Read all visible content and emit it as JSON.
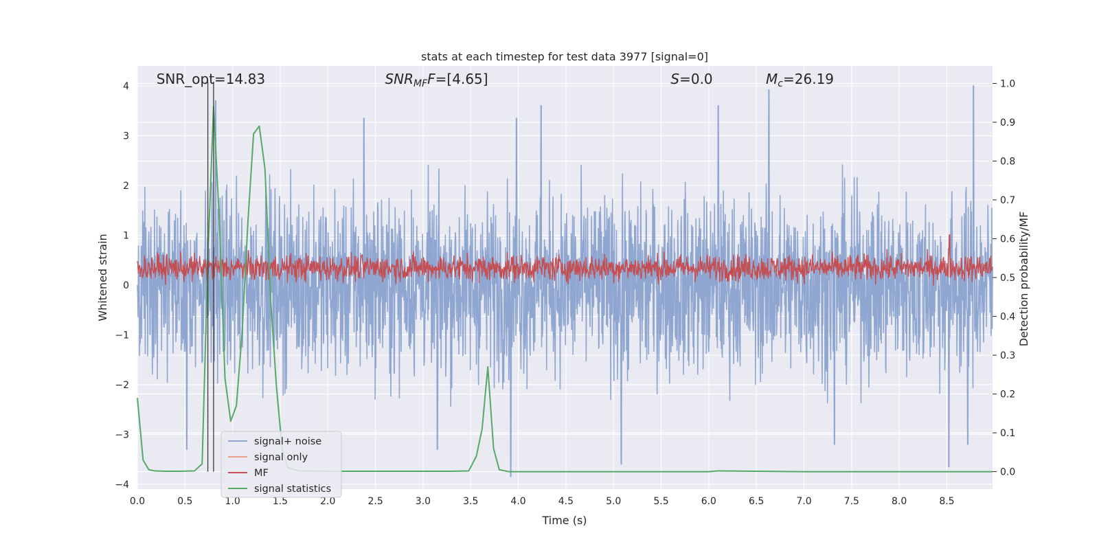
{
  "chart_data": {
    "type": "line",
    "title": "stats at each timestep for test data 3977 [signal=0]",
    "xlabel": "Time (s)",
    "ylabel": "Whitened strain",
    "ylabel_right": "Detection probability/MF",
    "xlim": [
      0.0,
      8.98
    ],
    "ylim": [
      -4.1,
      4.4
    ],
    "ylim_right": [
      -0.045,
      1.045
    ],
    "x_ticks": [
      "0.0",
      "0.5",
      "1.0",
      "1.5",
      "2.0",
      "2.5",
      "3.0",
      "3.5",
      "4.0",
      "4.5",
      "5.0",
      "5.5",
      "6.0",
      "6.5",
      "7.0",
      "7.5",
      "8.0",
      "8.5"
    ],
    "y_ticks": [
      "4",
      "3",
      "2",
      "1",
      "0",
      "−1",
      "−2",
      "−3",
      "−4"
    ],
    "y_ticks_right": [
      "1.0",
      "0.9",
      "0.8",
      "0.7",
      "0.6",
      "0.5",
      "0.4",
      "0.3",
      "0.2",
      "0.1",
      "0.0"
    ],
    "grid": true,
    "annotations": [
      {
        "id": "snr-opt",
        "text": "SNR_opt=14.83",
        "x": 0.2
      },
      {
        "id": "snr-mf",
        "text": "SNR",
        "sub": "MF",
        "suffix": "F=[4.65]",
        "x": 2.6
      },
      {
        "id": "s-stat",
        "text": "S",
        "suffix": "=0.0",
        "x": 5.6
      },
      {
        "id": "chirp-mass",
        "text": "M",
        "sub": "c",
        "suffix": "=26.19",
        "x": 6.6
      }
    ],
    "vertical_markers": [
      0.74,
      0.8
    ],
    "legend": {
      "placement": "lower-left",
      "entries": [
        {
          "label": "signal+ noise",
          "color": "#8fa6d1"
        },
        {
          "label": "signal only",
          "color": "#e8a08a"
        },
        {
          "label": "MF",
          "color": "#c44e52"
        },
        {
          "label": "signal statistics",
          "color": "#55a868"
        }
      ]
    },
    "series": [
      {
        "name": "signal+ noise",
        "axis": "left",
        "color": "#8fa6d1",
        "style": "dense-noise",
        "typical_range": [
          -1.6,
          1.6
        ],
        "x_range": [
          0.0,
          8.98
        ],
        "spikes": [
          {
            "x": 0.82,
            "y": 3.7
          },
          {
            "x": 2.38,
            "y": 3.35
          },
          {
            "x": 3.98,
            "y": 3.35
          },
          {
            "x": 4.24,
            "y": 3.6
          },
          {
            "x": 6.1,
            "y": 3.6
          },
          {
            "x": 6.63,
            "y": 3.92
          },
          {
            "x": 8.78,
            "y": 4.0
          },
          {
            "x": 0.52,
            "y": -3.3
          },
          {
            "x": 3.15,
            "y": -3.3
          },
          {
            "x": 5.08,
            "y": -3.6
          },
          {
            "x": 3.92,
            "y": -3.85
          },
          {
            "x": 8.52,
            "y": -3.65
          },
          {
            "x": 7.32,
            "y": -3.2
          },
          {
            "x": 8.72,
            "y": -3.2
          }
        ]
      },
      {
        "name": "MF",
        "axis": "right",
        "color": "#c44e52",
        "style": "dense-noise",
        "typical_range": [
          0.495,
          0.555
        ],
        "x_range": [
          0.0,
          8.98
        ],
        "spikes": [
          {
            "x": 8.53,
            "y": 0.61
          }
        ]
      },
      {
        "name": "signal statistics",
        "axis": "right",
        "color": "#55a868",
        "x": [
          0.0,
          0.06,
          0.12,
          0.18,
          0.3,
          0.45,
          0.6,
          0.68,
          0.74,
          0.8,
          0.86,
          0.92,
          0.98,
          1.04,
          1.1,
          1.16,
          1.22,
          1.28,
          1.34,
          1.4,
          1.46,
          1.52,
          1.58,
          1.7,
          2.0,
          2.5,
          3.0,
          3.3,
          3.48,
          3.56,
          3.62,
          3.68,
          3.74,
          3.8,
          3.9,
          4.2,
          5.0,
          6.0,
          6.1,
          7.0,
          8.0,
          8.98
        ],
        "y": [
          0.19,
          0.03,
          0.005,
          0.002,
          0.001,
          0.001,
          0.002,
          0.02,
          0.55,
          0.94,
          0.65,
          0.24,
          0.13,
          0.17,
          0.36,
          0.64,
          0.87,
          0.89,
          0.78,
          0.44,
          0.22,
          0.06,
          0.01,
          0.002,
          0.001,
          0.001,
          0.001,
          0.001,
          0.002,
          0.04,
          0.11,
          0.27,
          0.06,
          0.005,
          0.0,
          0.0,
          0.0,
          0.0,
          0.002,
          0.0,
          0.0,
          0.0
        ]
      }
    ]
  }
}
